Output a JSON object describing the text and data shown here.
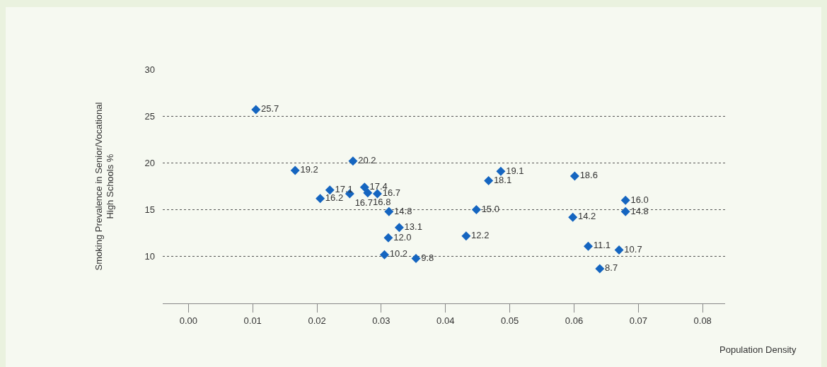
{
  "chart_data": {
    "type": "scatter",
    "xlabel": "Population Density",
    "ylabel": "Smoking Prevalence in Senior/Vocational\nHigh Schools %",
    "x": [
      0.0105,
      0.0166,
      0.0256,
      0.022,
      0.0205,
      0.0251,
      0.0274,
      0.0279,
      0.0294,
      0.0312,
      0.0328,
      0.0311,
      0.0305,
      0.0354,
      0.0432,
      0.0448,
      0.0467,
      0.0486,
      0.0601,
      0.0598,
      0.068,
      0.068,
      0.0622,
      0.067,
      0.064
    ],
    "series": [
      {
        "color": "#1565c0",
        "values": [
          25.7,
          19.2,
          20.2,
          17.1,
          16.2,
          16.7,
          17.4,
          16.8,
          16.7,
          14.8,
          13.1,
          12.0,
          10.2,
          9.8,
          12.2,
          15.0,
          18.1,
          19.1,
          18.6,
          14.2,
          16.0,
          14.8,
          11.1,
          10.7,
          8.7
        ],
        "value_labels": [
          "25.7",
          "19.2",
          "20.2",
          "17.1",
          "16.2",
          "16.7",
          "17.4",
          "16.8",
          "16.7",
          "14.8",
          "13.1",
          "12.0",
          "10.2",
          "9.8",
          "12.2",
          "15.0",
          "18.1",
          "19.1",
          "18.6",
          "14.2",
          "16.0",
          "14.8",
          "11.1",
          "10.7",
          "8.7"
        ]
      }
    ],
    "xlim": [
      -0.004,
      0.0835
    ],
    "xticks": [
      {
        "value": 0,
        "label": "0.00"
      },
      {
        "value": 0.01,
        "label": "0.01"
      },
      {
        "value": 0.02,
        "label": "0.02"
      },
      {
        "value": 0.03,
        "label": "0.03"
      },
      {
        "value": 0.04,
        "label": "0.04"
      },
      {
        "value": 0.05,
        "label": "0.05"
      },
      {
        "value": 0.06,
        "label": "0.06"
      },
      {
        "value": 0.07,
        "label": "0.07"
      },
      {
        "value": 0.08,
        "label": "0.08"
      }
    ],
    "ylim": [
      5,
      30
    ],
    "yticks": [
      10,
      15,
      20,
      25,
      30
    ],
    "grid": "y",
    "marker": "diamond"
  }
}
